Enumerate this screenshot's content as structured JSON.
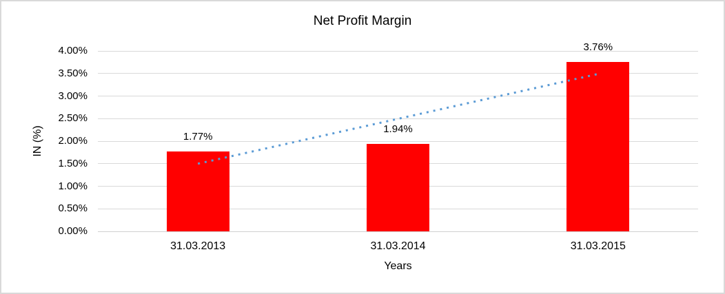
{
  "chart_data": {
    "type": "bar",
    "title": "Net Profit Margin",
    "xlabel": "Years",
    "ylabel": "IN (%)",
    "categories": [
      "31.03.2013",
      "31.03.2014",
      "31.03.2015"
    ],
    "values": [
      1.77,
      1.94,
      3.76
    ],
    "data_labels": [
      "1.77%",
      "1.94%",
      "3.76%"
    ],
    "ylim": [
      0,
      4
    ],
    "ytick_step": 0.5,
    "yticks": [
      "0.00%",
      "0.50%",
      "1.00%",
      "1.50%",
      "2.00%",
      "2.50%",
      "3.00%",
      "3.50%",
      "4.00%"
    ],
    "grid": true,
    "legend_position": "none",
    "bar_color": "#FF0000",
    "trendline": {
      "type": "linear",
      "style": "dotted",
      "color": "#5B9BD5",
      "start_value": 1.5,
      "end_value": 3.49
    }
  },
  "colors": {
    "background": "#FFFFFF",
    "border": "#D9D9D9",
    "gridline": "#D9D9D9",
    "axis_line": "#D0D0D0",
    "text": "#000000"
  }
}
